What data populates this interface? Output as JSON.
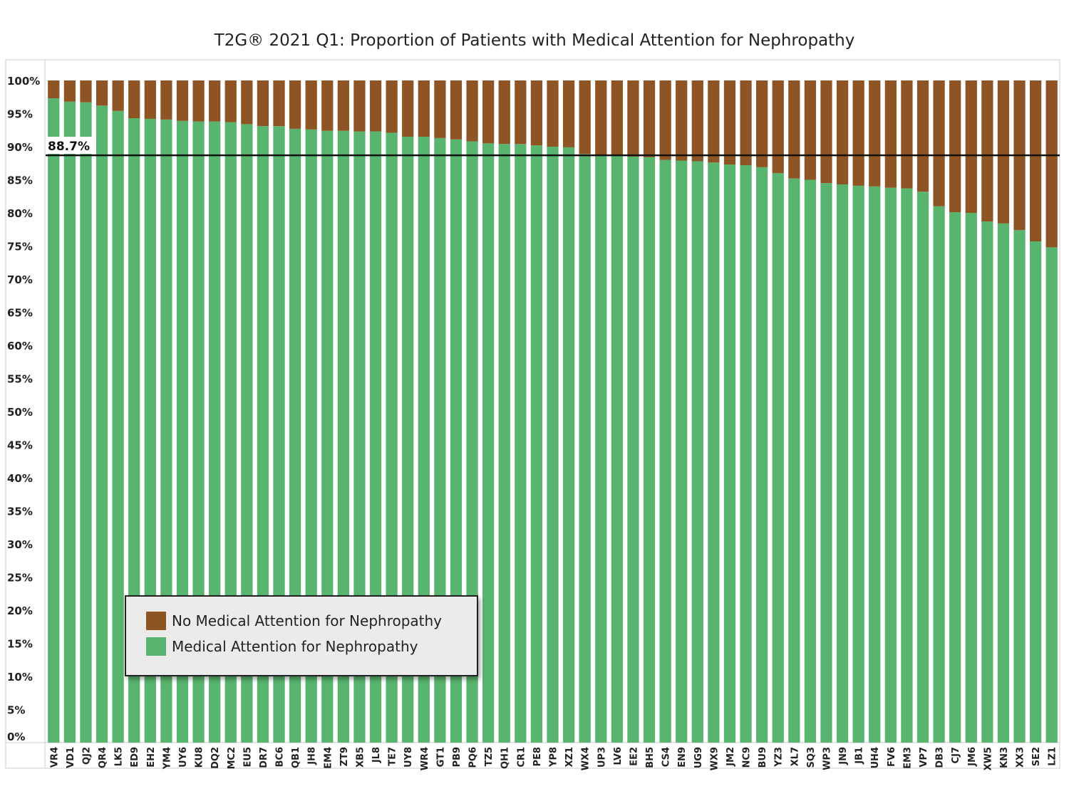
{
  "chart_data": {
    "type": "bar",
    "stacked": true,
    "title": "T2G® 2021 Q1: Proportion of Patients with Medical Attention for Nephropathy",
    "xlabel": "",
    "ylabel": "",
    "ylim": [
      0,
      100
    ],
    "y_ticks": [
      "0%",
      "5%",
      "10%",
      "15%",
      "20%",
      "25%",
      "30%",
      "35%",
      "40%",
      "45%",
      "50%",
      "55%",
      "60%",
      "65%",
      "70%",
      "75%",
      "80%",
      "85%",
      "90%",
      "95%",
      "100%"
    ],
    "categories": [
      "VR4",
      "VD1",
      "QJ2",
      "QR4",
      "LK5",
      "ED9",
      "EH2",
      "YM4",
      "UY6",
      "KU8",
      "DQ2",
      "MC2",
      "EU5",
      "DR7",
      "BC6",
      "QB1",
      "JH8",
      "EM4",
      "ZT9",
      "XB5",
      "JL8",
      "TE7",
      "UY8",
      "WR4",
      "GT1",
      "PB9",
      "PQ6",
      "TZ5",
      "QH1",
      "CR1",
      "PE8",
      "YP8",
      "XZ1",
      "WX4",
      "UP3",
      "LV6",
      "EE2",
      "BH5",
      "CS4",
      "EN9",
      "UG9",
      "WX9",
      "JM2",
      "NC9",
      "BU9",
      "YZ3",
      "XL7",
      "SQ3",
      "WP3",
      "JN9",
      "JB1",
      "UH4",
      "FV6",
      "EM3",
      "VP7",
      "DB3",
      "CJ7",
      "JM6",
      "XW5",
      "KN3",
      "XX3",
      "SE2",
      "LZ1"
    ],
    "series": [
      {
        "name": "Medical Attention for Nephropathy",
        "color": "#58b46e",
        "values": [
          97.3,
          96.8,
          96.7,
          96.2,
          95.4,
          94.3,
          94.2,
          94.1,
          93.9,
          93.8,
          93.8,
          93.7,
          93.4,
          93.1,
          93.1,
          92.7,
          92.6,
          92.4,
          92.4,
          92.3,
          92.3,
          92.1,
          91.5,
          91.5,
          91.3,
          91.1,
          90.8,
          90.5,
          90.4,
          90.4,
          90.2,
          90.0,
          89.9,
          88.9,
          88.8,
          88.6,
          88.5,
          88.4,
          88.0,
          87.9,
          87.8,
          87.6,
          87.3,
          87.2,
          86.9,
          86.0,
          85.2,
          85.0,
          84.5,
          84.3,
          84.1,
          84.0,
          83.8,
          83.7,
          83.2,
          81.0,
          80.1,
          80.0,
          78.7,
          78.4,
          77.4,
          75.7,
          74.8
        ]
      },
      {
        "name": "No Medical Attention for Nephropathy",
        "color": "#8e5423",
        "values": [
          2.7,
          3.2,
          3.3,
          3.8,
          4.6,
          5.7,
          5.8,
          5.9,
          6.1,
          6.2,
          6.2,
          6.3,
          6.6,
          6.9,
          6.9,
          7.3,
          7.4,
          7.6,
          7.6,
          7.7,
          7.7,
          7.9,
          8.5,
          8.5,
          8.7,
          8.9,
          9.2,
          9.5,
          9.6,
          9.6,
          9.8,
          10.0,
          10.1,
          11.1,
          11.2,
          11.4,
          11.5,
          11.6,
          12.0,
          12.1,
          12.2,
          12.4,
          12.7,
          12.8,
          13.1,
          14.0,
          14.8,
          15.0,
          15.5,
          15.7,
          15.9,
          16.0,
          16.2,
          16.3,
          16.8,
          19.0,
          19.9,
          20.0,
          21.3,
          21.6,
          22.6,
          24.3,
          25.2
        ]
      }
    ],
    "reference_line": {
      "value": 88.7,
      "label": "88.7%",
      "color": "#111111"
    },
    "legend": {
      "placement": "bottom-left",
      "entries": [
        "No Medical Attention for Nephropathy",
        "Medical Attention for Nephropathy"
      ]
    },
    "grid": false
  }
}
